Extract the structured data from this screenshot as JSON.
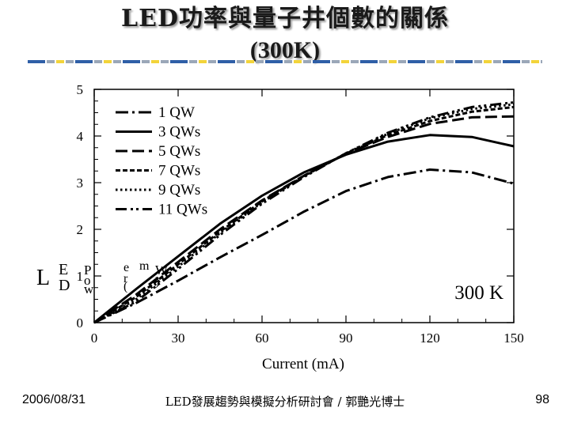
{
  "slide": {
    "title_line1": "LED功率與量子井個數的關係",
    "title_line2": "(300K)",
    "footer_date": "2006/08/31",
    "footer_center": "LED發展趨勢與模擬分析研討會 / 郭艷光博士",
    "footer_page": "98",
    "deco_colors": {
      "blue": "#2f5fa7",
      "gray": "#9aa7b8",
      "yellow": "#f3d43a"
    }
  },
  "chart_data": {
    "type": "line",
    "title": "",
    "xlabel": "Current (mA)",
    "ylabel_chars": [
      "L",
      "E",
      "D",
      "P",
      "o",
      "w",
      "e",
      "r",
      "(",
      "m",
      "W",
      ")"
    ],
    "annotation": "300 K",
    "xlim": [
      0,
      150
    ],
    "ylim": [
      0,
      5
    ],
    "xticks": [
      0,
      30,
      60,
      90,
      120,
      150
    ],
    "yticks": [
      0,
      1,
      2,
      3,
      4,
      5
    ],
    "grid": false,
    "legend_position": "top-left",
    "series": [
      {
        "name": "1 QW",
        "dash": "dash-dot",
        "x": [
          0,
          15,
          30,
          45,
          60,
          75,
          90,
          105,
          120,
          135,
          150
        ],
        "y": [
          0,
          0.42,
          0.9,
          1.4,
          1.88,
          2.38,
          2.82,
          3.12,
          3.28,
          3.22,
          2.98
        ]
      },
      {
        "name": "3 QWs",
        "dash": "solid",
        "x": [
          0,
          15,
          30,
          45,
          60,
          75,
          90,
          105,
          120,
          135,
          150
        ],
        "y": [
          0,
          0.72,
          1.42,
          2.12,
          2.72,
          3.22,
          3.6,
          3.88,
          4.02,
          3.98,
          3.78
        ]
      },
      {
        "name": "5 QWs",
        "dash": "long-dash",
        "x": [
          0,
          15,
          30,
          45,
          60,
          75,
          90,
          105,
          120,
          135,
          150
        ],
        "y": [
          0,
          0.6,
          1.3,
          2.0,
          2.62,
          3.15,
          3.62,
          3.98,
          4.26,
          4.4,
          4.42
        ]
      },
      {
        "name": "7 QWs",
        "dash": "short-dash",
        "x": [
          0,
          15,
          30,
          45,
          60,
          75,
          90,
          105,
          120,
          135,
          150
        ],
        "y": [
          0,
          0.55,
          1.25,
          1.95,
          2.6,
          3.15,
          3.62,
          4.02,
          4.32,
          4.52,
          4.62
        ]
      },
      {
        "name": "9 QWs",
        "dash": "dotted",
        "x": [
          0,
          15,
          30,
          45,
          60,
          75,
          90,
          105,
          120,
          135,
          150
        ],
        "y": [
          0,
          0.5,
          1.2,
          1.92,
          2.58,
          3.14,
          3.63,
          4.05,
          4.38,
          4.58,
          4.68
        ]
      },
      {
        "name": "11 QWs",
        "dash": "dash-dot-dot",
        "x": [
          0,
          15,
          30,
          45,
          60,
          75,
          90,
          105,
          120,
          135,
          150
        ],
        "y": [
          0,
          0.45,
          1.15,
          1.88,
          2.55,
          3.12,
          3.63,
          4.07,
          4.4,
          4.62,
          4.72
        ]
      }
    ]
  }
}
